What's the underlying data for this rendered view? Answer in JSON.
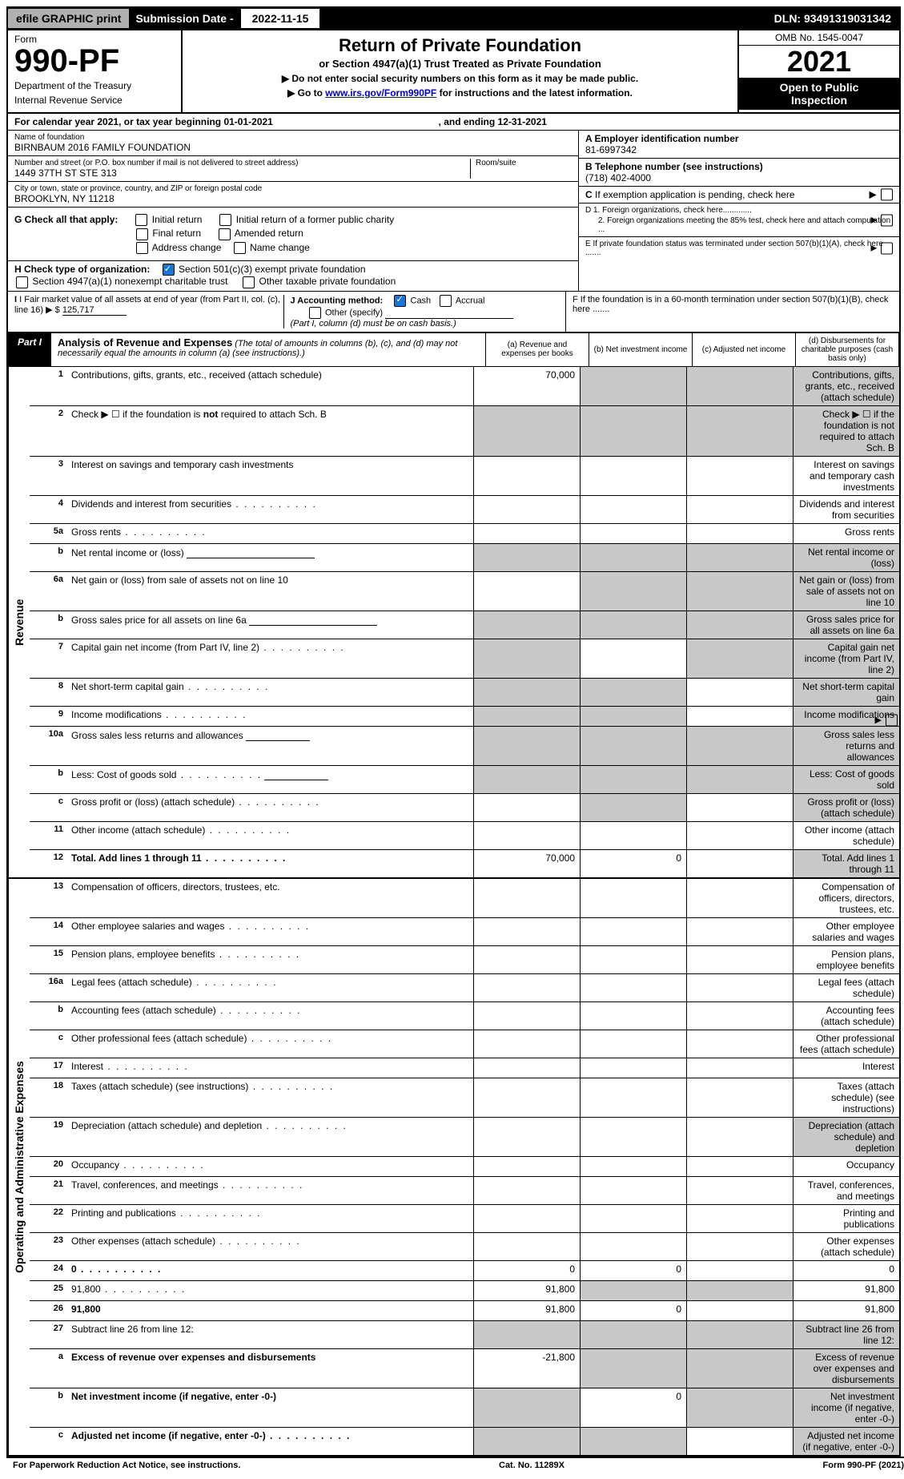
{
  "topbar": {
    "efile": "efile GRAPHIC print",
    "subm_label": "Submission Date - ",
    "subm_date": "2022-11-15",
    "dln": "DLN: 93491319031342"
  },
  "header": {
    "form": "Form",
    "form_num": "990-PF",
    "dept1": "Department of the Treasury",
    "dept2": "Internal Revenue Service",
    "title": "Return of Private Foundation",
    "sub": "or Section 4947(a)(1) Trust Treated as Private Foundation",
    "note1": "▶ Do not enter social security numbers on this form as it may be made public.",
    "note2_pre": "▶ Go to ",
    "note2_link": "www.irs.gov/Form990PF",
    "note2_post": " for instructions and the latest information.",
    "omb": "OMB No. 1545-0047",
    "year": "2021",
    "open1": "Open to Public",
    "open2": "Inspection"
  },
  "calendar": {
    "text_pre": "For calendar year 2021, or tax year beginning ",
    "begin": "01-01-2021",
    "mid": ", and ending ",
    "end": "12-31-2021"
  },
  "foundation": {
    "name_label": "Name of foundation",
    "name": "BIRNBAUM 2016 FAMILY FOUNDATION",
    "addr_label": "Number and street (or P.O. box number if mail is not delivered to street address)",
    "addr": "1449 37TH ST STE 313",
    "room_label": "Room/suite",
    "city_label": "City or town, state or province, country, and ZIP or foreign postal code",
    "city": "BROOKLYN, NY  11218",
    "a_label": "A Employer identification number",
    "a_val": "81-6997342",
    "b_label": "B Telephone number (see instructions)",
    "b_val": "(718) 402-4000",
    "c_label": "C If exemption application is pending, check here",
    "d1": "D 1. Foreign organizations, check here.............",
    "d2": "2. Foreign organizations meeting the 85% test, check here and attach computation ...",
    "e": "E   If private foundation status was terminated under section 507(b)(1)(A), check here .......",
    "f": "F   If the foundation is in a 60-month termination under section 507(b)(1)(B), check here .......",
    "g_label": "G Check all that apply:",
    "g_opts": [
      "Initial return",
      "Initial return of a former public charity",
      "Final return",
      "Amended return",
      "Address change",
      "Name change"
    ],
    "h_label": "H Check type of organization:",
    "h_1": "Section 501(c)(3) exempt private foundation",
    "h_2": "Section 4947(a)(1) nonexempt charitable trust",
    "h_3": "Other taxable private foundation",
    "i_label": "I Fair market value of all assets at end of year (from Part II, col. (c), line 16)",
    "i_val": "125,717",
    "j_label": "J Accounting method:",
    "j_cash": "Cash",
    "j_accrual": "Accrual",
    "j_other": "Other (specify)",
    "j_note": "(Part I, column (d) must be on cash basis.)"
  },
  "part1": {
    "tab": "Part I",
    "title": "Analysis of Revenue and Expenses",
    "note": "(The total of amounts in columns (b), (c), and (d) may not necessarily equal the amounts in column (a) (see instructions).)",
    "col_a": "(a)   Revenue and expenses per books",
    "col_b": "(b)   Net investment income",
    "col_c": "(c)   Adjusted net income",
    "col_d": "(d)   Disbursements for charitable purposes (cash basis only)"
  },
  "revenue": {
    "label": "Revenue",
    "rows": [
      {
        "n": "1",
        "d": "Contributions, gifts, grants, etc., received (attach schedule)",
        "a": "70,000",
        "shade": [
          "b",
          "c",
          "d"
        ]
      },
      {
        "n": "2",
        "d": "Check ▶ ☐ if the foundation is not required to attach Sch. B",
        "shade": [
          "a",
          "b",
          "c",
          "d"
        ],
        "dots_b": true,
        "bold_not": true
      },
      {
        "n": "3",
        "d": "Interest on savings and temporary cash investments"
      },
      {
        "n": "4",
        "d": "Dividends and interest from securities",
        "dots": true
      },
      {
        "n": "5a",
        "d": "Gross rents",
        "dots": true
      },
      {
        "n": "b",
        "d": "Net rental income or (loss)",
        "underline": true,
        "shade": [
          "a",
          "b",
          "c",
          "d"
        ]
      },
      {
        "n": "6a",
        "d": "Net gain or (loss) from sale of assets not on line 10",
        "shade": [
          "b",
          "c",
          "d"
        ]
      },
      {
        "n": "b",
        "d": "Gross sales price for all assets on line 6a",
        "underline": true,
        "shade": [
          "a",
          "b",
          "c",
          "d"
        ]
      },
      {
        "n": "7",
        "d": "Capital gain net income (from Part IV, line 2)",
        "dots": true,
        "shade": [
          "a",
          "c",
          "d"
        ]
      },
      {
        "n": "8",
        "d": "Net short-term capital gain",
        "dots": true,
        "shade": [
          "a",
          "b",
          "d"
        ]
      },
      {
        "n": "9",
        "d": "Income modifications",
        "dots": true,
        "shade": [
          "a",
          "b",
          "d"
        ]
      },
      {
        "n": "10a",
        "d": "Gross sales less returns and allowances",
        "underline_short": true,
        "shade": [
          "a",
          "b",
          "c",
          "d"
        ]
      },
      {
        "n": "b",
        "d": "Less: Cost of goods sold",
        "dots": true,
        "underline_short": true,
        "shade": [
          "a",
          "b",
          "c",
          "d"
        ]
      },
      {
        "n": "c",
        "d": "Gross profit or (loss) (attach schedule)",
        "dots": true,
        "shade": [
          "b",
          "d"
        ]
      },
      {
        "n": "11",
        "d": "Other income (attach schedule)",
        "dots": true
      },
      {
        "n": "12",
        "d": "Total. Add lines 1 through 11",
        "dots": true,
        "bold": true,
        "a": "70,000",
        "b": "0",
        "shade": [
          "d"
        ]
      }
    ]
  },
  "expenses": {
    "label": "Operating and Administrative Expenses",
    "rows": [
      {
        "n": "13",
        "d": "Compensation of officers, directors, trustees, etc."
      },
      {
        "n": "14",
        "d": "Other employee salaries and wages",
        "dots": true
      },
      {
        "n": "15",
        "d": "Pension plans, employee benefits",
        "dots": true
      },
      {
        "n": "16a",
        "d": "Legal fees (attach schedule)",
        "dots": true
      },
      {
        "n": "b",
        "d": "Accounting fees (attach schedule)",
        "dots": true
      },
      {
        "n": "c",
        "d": "Other professional fees (attach schedule)",
        "dots": true
      },
      {
        "n": "17",
        "d": "Interest",
        "dots": true
      },
      {
        "n": "18",
        "d": "Taxes (attach schedule) (see instructions)",
        "dots": true
      },
      {
        "n": "19",
        "d": "Depreciation (attach schedule) and depletion",
        "dots": true,
        "shade": [
          "d"
        ]
      },
      {
        "n": "20",
        "d": "Occupancy",
        "dots": true
      },
      {
        "n": "21",
        "d": "Travel, conferences, and meetings",
        "dots": true
      },
      {
        "n": "22",
        "d": "Printing and publications",
        "dots": true
      },
      {
        "n": "23",
        "d": "Other expenses (attach schedule)",
        "dots": true
      },
      {
        "n": "24",
        "d": "0",
        "dots": true,
        "bold": true,
        "a": "0",
        "b": "0"
      },
      {
        "n": "25",
        "d": "91,800",
        "dots": true,
        "a": "91,800",
        "shade": [
          "b",
          "c"
        ]
      },
      {
        "n": "26",
        "d": "91,800",
        "bold": true,
        "a": "91,800",
        "b": "0"
      },
      {
        "n": "27",
        "d": "Subtract line 26 from line 12:",
        "shade": [
          "a",
          "b",
          "c",
          "d"
        ]
      },
      {
        "n": "a",
        "d": "Excess of revenue over expenses and disbursements",
        "bold": true,
        "a": "-21,800",
        "shade": [
          "b",
          "c",
          "d"
        ]
      },
      {
        "n": "b",
        "d": "Net investment income (if negative, enter -0-)",
        "bold": true,
        "b": "0",
        "shade": [
          "a",
          "c",
          "d"
        ]
      },
      {
        "n": "c",
        "d": "Adjusted net income (if negative, enter -0-)",
        "bold": true,
        "dots": true,
        "shade": [
          "a",
          "b",
          "d"
        ]
      }
    ]
  },
  "footer": {
    "left": "For Paperwork Reduction Act Notice, see instructions.",
    "mid": "Cat. No. 11289X",
    "right": "Form 990-PF (2021)"
  }
}
